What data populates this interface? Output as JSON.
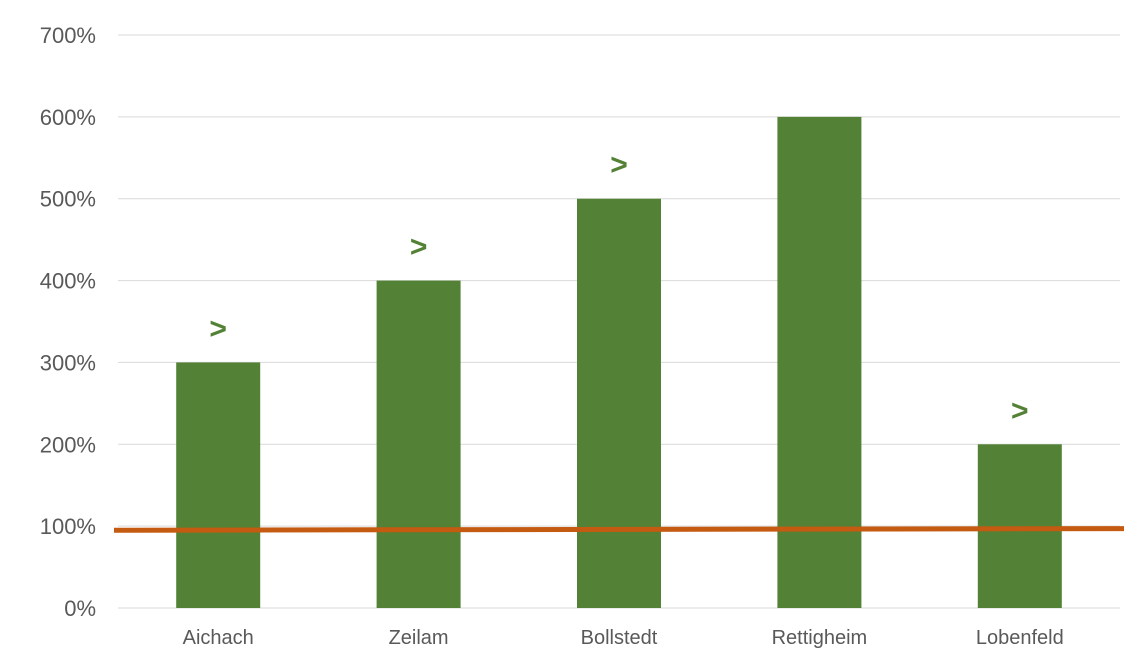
{
  "chart_data": {
    "type": "bar",
    "title": "",
    "xlabel": "",
    "ylabel": "",
    "categories": [
      "Aichach",
      "Zeilam",
      "Bollstedt",
      "Rettigheim",
      "Lobenfeld"
    ],
    "values": [
      300,
      400,
      500,
      600,
      200
    ],
    "ylim": [
      0,
      700
    ],
    "yticks": [
      0,
      100,
      200,
      300,
      400,
      500,
      600,
      700
    ],
    "ytick_labels": [
      "0%",
      "100%",
      "200%",
      "300%",
      "400%",
      "500%",
      "600%",
      "700%"
    ],
    "grid": true,
    "legend": "none",
    "reference_line": {
      "y_start": 95,
      "y_end": 97
    },
    "bar_markers": [
      {
        "category": "Aichach",
        "symbol": ">"
      },
      {
        "category": "Zeilam",
        "symbol": ">"
      },
      {
        "category": "Bollstedt",
        "symbol": ">"
      },
      {
        "category": "Lobenfeld",
        "symbol": ">"
      }
    ],
    "colors": {
      "bar": "#538135",
      "reference_line": "#C55A11",
      "marker": "#538135",
      "grid": "#d9d9d9",
      "text": "#595959"
    }
  }
}
